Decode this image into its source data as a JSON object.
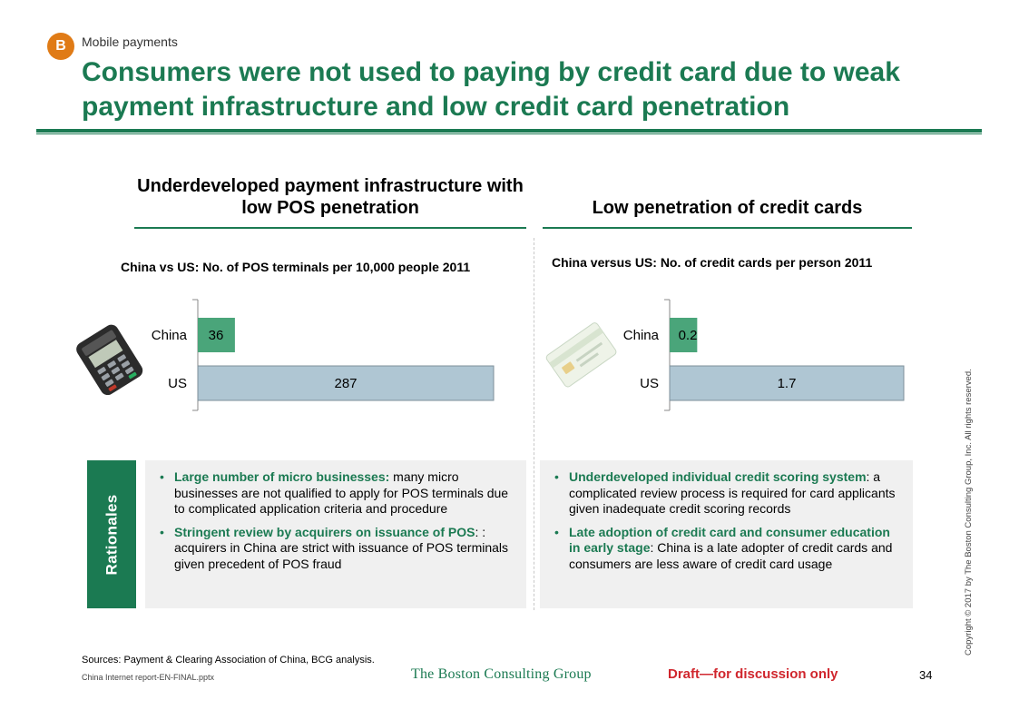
{
  "header": {
    "badge": "B",
    "section": "Mobile payments",
    "title": "Consumers were not used to paying by credit card due to weak payment infrastructure and low credit card penetration"
  },
  "left_panel": {
    "heading": "Underdeveloped payment infrastructure with low POS penetration",
    "chart_title": "China vs US: No. of POS terminals per 10,000 people 2011",
    "icon": "pos-terminal-icon",
    "bullets": [
      {
        "highlight": "Large number of micro businesses:",
        "text": " many micro businesses are not qualified to apply for POS terminals due to complicated application criteria and procedure"
      },
      {
        "highlight": "Stringent review by acquirers on issuance of POS",
        "text": ": : acquirers in China are strict with issuance of POS terminals given precedent of POS fraud"
      }
    ]
  },
  "right_panel": {
    "heading": "Low penetration of credit cards",
    "chart_title": "China versus US: No. of credit cards per person 2011",
    "icon": "credit-card-icon",
    "bullets": [
      {
        "highlight": "Underdeveloped individual credit scoring system",
        "text": ": a complicated review process is required for card applicants given inadequate credit scoring records"
      },
      {
        "highlight": "Late adoption of credit card and consumer education in early stage",
        "text": ": China is a late adopter of credit cards and consumers are less aware of credit card usage"
      }
    ]
  },
  "rationales_label": "Rationales",
  "footer": {
    "sources": "Sources: Payment & Clearing Association of China, BCG analysis.",
    "filename": "China Internet report-EN-FINAL.pptx",
    "logo": "The Boston Consulting Group",
    "draft": "Draft—for discussion only",
    "page": "34",
    "copyright": "Copyright © 2017 by The Boston Consulting Group, Inc. All rights reserved."
  },
  "colors": {
    "accent": "#1b7a52",
    "china_bar": "#4aa57a",
    "us_bar": "#afc6d3",
    "badge": "#e07b16",
    "draft": "#d0262d"
  },
  "chart_data": [
    {
      "type": "bar",
      "orientation": "horizontal",
      "title": "China vs US: No. of POS terminals per 10,000 people 2011",
      "categories": [
        "China",
        "US"
      ],
      "values": [
        36,
        287
      ],
      "labels": [
        "36",
        "287"
      ]
    },
    {
      "type": "bar",
      "orientation": "horizontal",
      "title": "China versus US: No. of credit cards per person 2011",
      "categories": [
        "China",
        "US"
      ],
      "values": [
        0.2,
        1.7
      ],
      "labels": [
        "0.2",
        "1.7"
      ]
    }
  ]
}
